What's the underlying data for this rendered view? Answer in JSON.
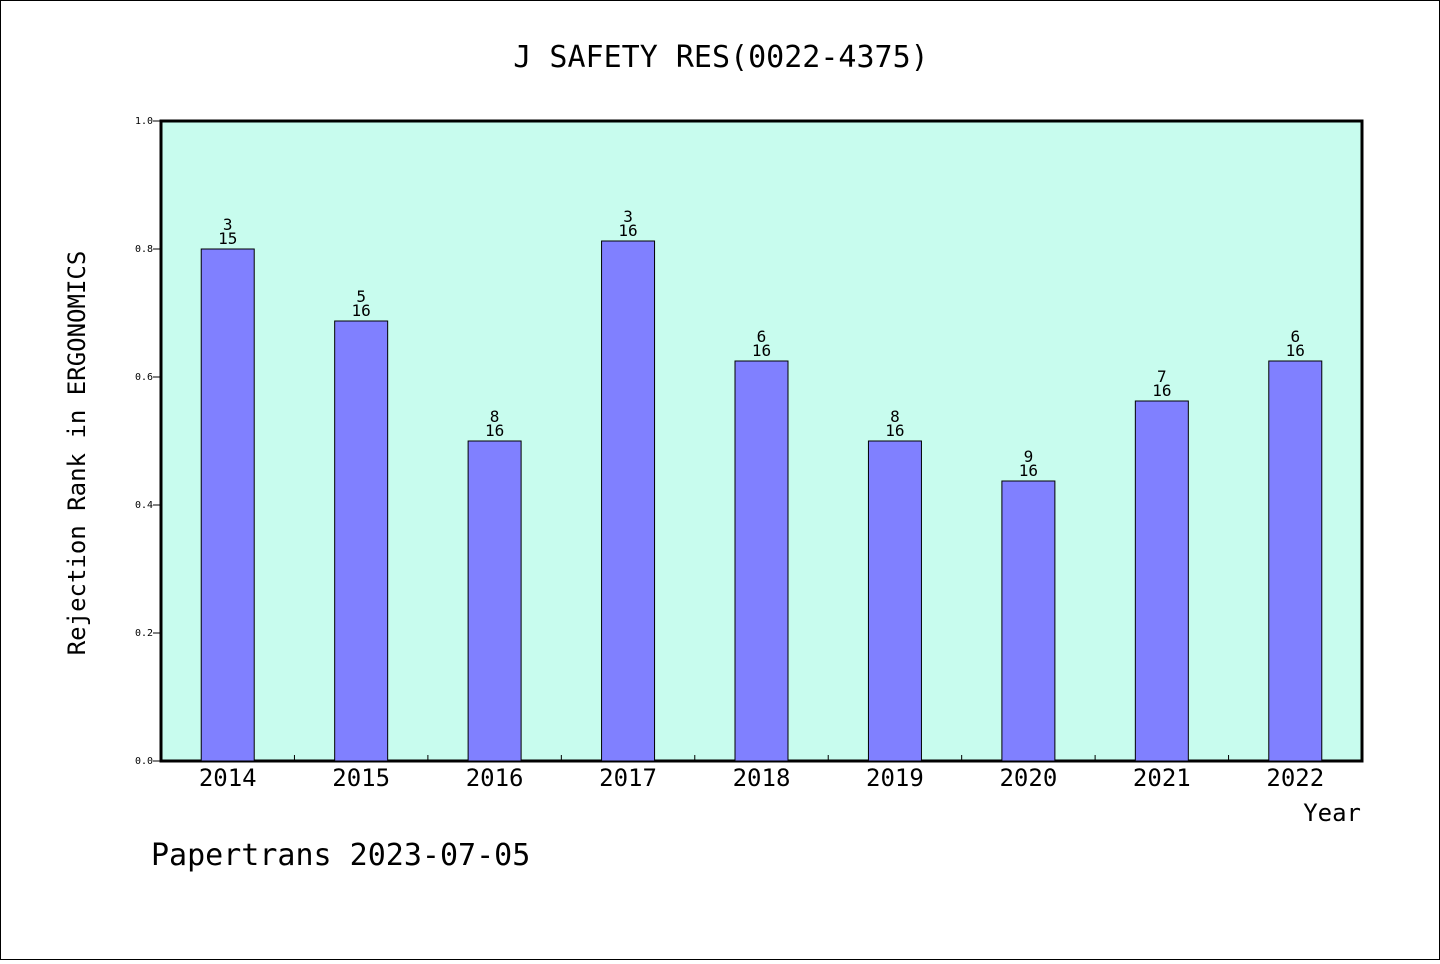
{
  "chart_data": {
    "type": "bar",
    "title": "J SAFETY RES(0022-4375)",
    "xlabel": "Year",
    "ylabel": "Rejection Rank in ERGONOMICS",
    "ylim": [
      0,
      1.0
    ],
    "yticks": [
      "0.0",
      "0.2",
      "0.4",
      "0.6",
      "0.8",
      "1.0"
    ],
    "grid": false,
    "categories": [
      "2014",
      "2015",
      "2016",
      "2017",
      "2018",
      "2019",
      "2020",
      "2021",
      "2022"
    ],
    "values": [
      0.8,
      0.6875,
      0.5,
      0.8125,
      0.625,
      0.5,
      0.4375,
      0.5625,
      0.625
    ],
    "rank": [
      "3",
      "5",
      "8",
      "3",
      "6",
      "8",
      "9",
      "7",
      "6"
    ],
    "total": [
      "15",
      "16",
      "16",
      "16",
      "16",
      "16",
      "16",
      "16",
      "16"
    ],
    "colors": {
      "plot_background": "#c8fcee",
      "bar_fill": "#8080ff",
      "bar_stroke": "#000000"
    }
  },
  "footer": "Papertrans 2023-07-05"
}
